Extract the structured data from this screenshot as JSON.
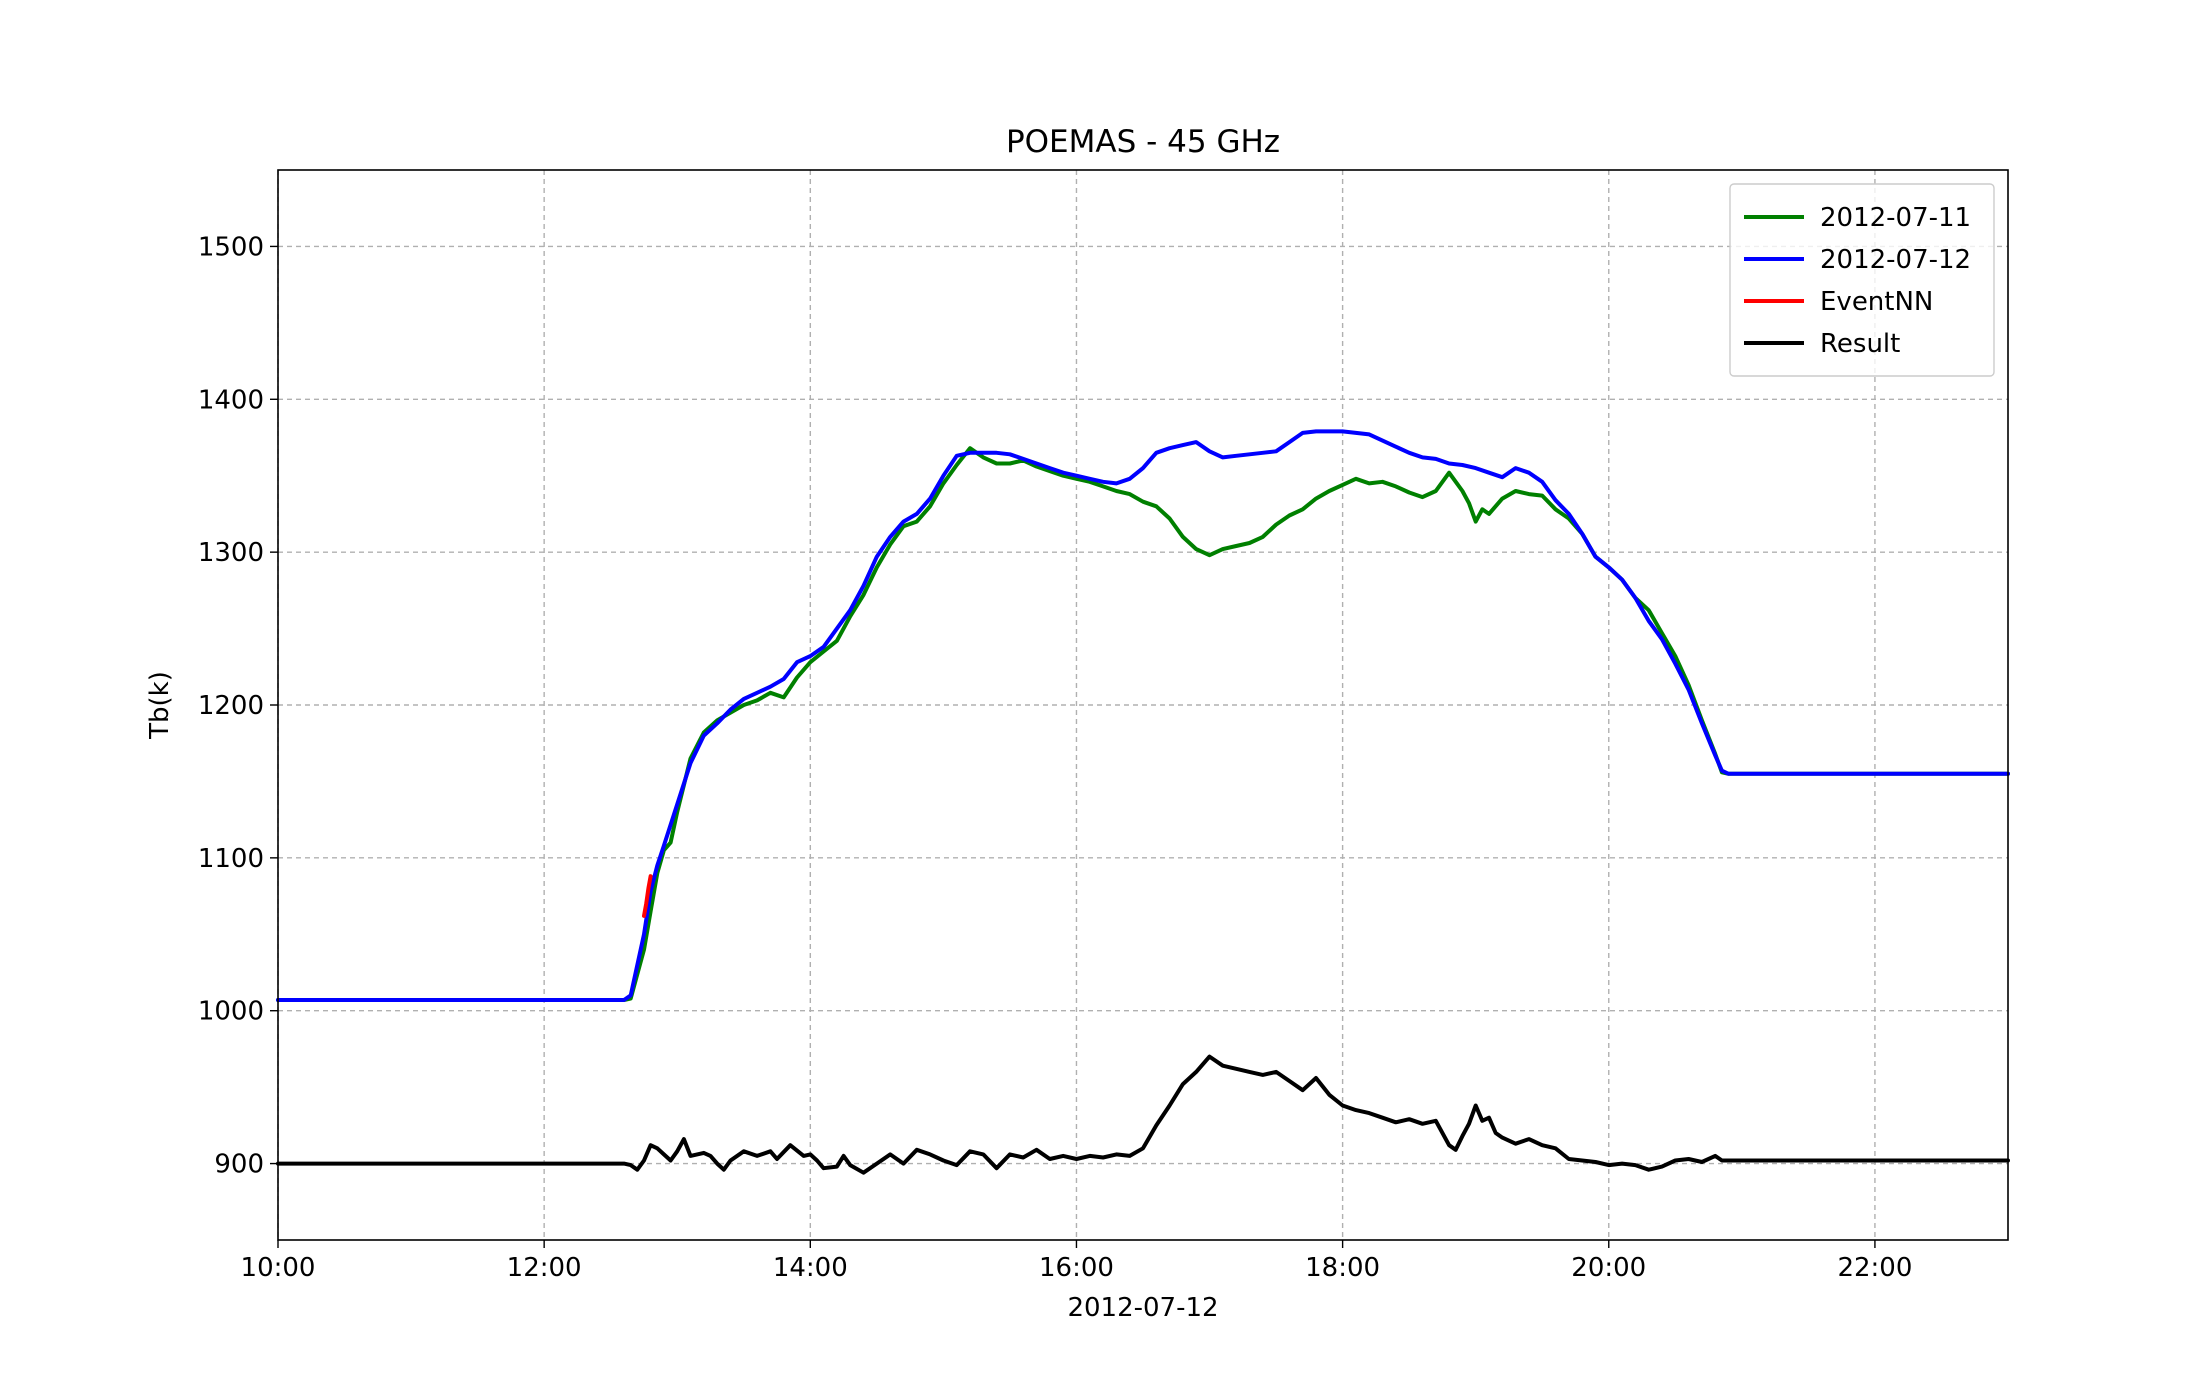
{
  "chart_data": {
    "type": "line",
    "title": "POEMAS - 45 GHz",
    "xlabel": "2012-07-12",
    "ylabel": "Tb(k)",
    "xlim": [
      "10:00",
      "23:00"
    ],
    "ylim": [
      850,
      1550
    ],
    "x_ticks": [
      "10:00",
      "12:00",
      "14:00",
      "16:00",
      "18:00",
      "20:00",
      "22:00"
    ],
    "y_ticks": [
      "900",
      "1000",
      "1100",
      "1200",
      "1300",
      "1400",
      "1500"
    ],
    "grid": true,
    "legend_position": "top-right",
    "series": [
      {
        "name": "2012-07-11",
        "color": "#008000",
        "points": [
          [
            "10:00",
            1007
          ],
          [
            "12:36",
            1007
          ],
          [
            "12:39",
            1008
          ],
          [
            "12:45",
            1040
          ],
          [
            "12:48",
            1065
          ],
          [
            "12:51",
            1090
          ],
          [
            "12:54",
            1105
          ],
          [
            "12:57",
            1110
          ],
          [
            "13:00",
            1130
          ],
          [
            "13:06",
            1165
          ],
          [
            "13:12",
            1182
          ],
          [
            "13:18",
            1190
          ],
          [
            "13:24",
            1195
          ],
          [
            "13:30",
            1200
          ],
          [
            "13:36",
            1203
          ],
          [
            "13:42",
            1208
          ],
          [
            "13:48",
            1205
          ],
          [
            "13:54",
            1218
          ],
          [
            "14:00",
            1228
          ],
          [
            "14:06",
            1235
          ],
          [
            "14:12",
            1242
          ],
          [
            "14:18",
            1258
          ],
          [
            "14:24",
            1272
          ],
          [
            "14:30",
            1290
          ],
          [
            "14:36",
            1305
          ],
          [
            "14:42",
            1317
          ],
          [
            "14:48",
            1320
          ],
          [
            "14:54",
            1330
          ],
          [
            "15:00",
            1345
          ],
          [
            "15:06",
            1357
          ],
          [
            "15:12",
            1368
          ],
          [
            "15:18",
            1362
          ],
          [
            "15:24",
            1358
          ],
          [
            "15:30",
            1358
          ],
          [
            "15:36",
            1360
          ],
          [
            "15:42",
            1356
          ],
          [
            "15:48",
            1353
          ],
          [
            "15:54",
            1350
          ],
          [
            "16:00",
            1348
          ],
          [
            "16:06",
            1346
          ],
          [
            "16:12",
            1343
          ],
          [
            "16:18",
            1340
          ],
          [
            "16:24",
            1338
          ],
          [
            "16:30",
            1333
          ],
          [
            "16:36",
            1330
          ],
          [
            "16:42",
            1322
          ],
          [
            "16:48",
            1310
          ],
          [
            "16:54",
            1302
          ],
          [
            "17:00",
            1298
          ],
          [
            "17:06",
            1302
          ],
          [
            "17:12",
            1304
          ],
          [
            "17:18",
            1306
          ],
          [
            "17:24",
            1310
          ],
          [
            "17:30",
            1318
          ],
          [
            "17:36",
            1324
          ],
          [
            "17:42",
            1328
          ],
          [
            "17:48",
            1335
          ],
          [
            "17:54",
            1340
          ],
          [
            "18:00",
            1344
          ],
          [
            "18:06",
            1348
          ],
          [
            "18:12",
            1345
          ],
          [
            "18:18",
            1346
          ],
          [
            "18:24",
            1343
          ],
          [
            "18:30",
            1339
          ],
          [
            "18:36",
            1336
          ],
          [
            "18:42",
            1340
          ],
          [
            "18:48",
            1352
          ],
          [
            "18:54",
            1340
          ],
          [
            "18:57",
            1332
          ],
          [
            "19:00",
            1320
          ],
          [
            "19:03",
            1328
          ],
          [
            "19:06",
            1325
          ],
          [
            "19:12",
            1335
          ],
          [
            "19:18",
            1340
          ],
          [
            "19:24",
            1338
          ],
          [
            "19:30",
            1337
          ],
          [
            "19:36",
            1328
          ],
          [
            "19:42",
            1322
          ],
          [
            "19:48",
            1312
          ],
          [
            "19:54",
            1297
          ],
          [
            "20:00",
            1290
          ],
          [
            "20:06",
            1282
          ],
          [
            "20:12",
            1270
          ],
          [
            "20:18",
            1262
          ],
          [
            "20:24",
            1247
          ],
          [
            "20:30",
            1232
          ],
          [
            "20:36",
            1213
          ],
          [
            "20:42",
            1190
          ],
          [
            "20:48",
            1168
          ],
          [
            "20:51",
            1156
          ],
          [
            "20:54",
            1155
          ],
          [
            "23:00",
            1155
          ]
        ]
      },
      {
        "name": "2012-07-12",
        "color": "#0000ff",
        "points": [
          [
            "10:00",
            1007
          ],
          [
            "12:36",
            1007
          ],
          [
            "12:39",
            1010
          ],
          [
            "12:45",
            1050
          ],
          [
            "12:48",
            1078
          ],
          [
            "12:51",
            1095
          ],
          [
            "12:54",
            1108
          ],
          [
            "13:00",
            1135
          ],
          [
            "13:06",
            1162
          ],
          [
            "13:12",
            1180
          ],
          [
            "13:18",
            1188
          ],
          [
            "13:24",
            1197
          ],
          [
            "13:30",
            1204
          ],
          [
            "13:36",
            1208
          ],
          [
            "13:42",
            1212
          ],
          [
            "13:48",
            1217
          ],
          [
            "13:54",
            1228
          ],
          [
            "14:00",
            1232
          ],
          [
            "14:06",
            1238
          ],
          [
            "14:12",
            1250
          ],
          [
            "14:18",
            1262
          ],
          [
            "14:24",
            1278
          ],
          [
            "14:30",
            1297
          ],
          [
            "14:36",
            1310
          ],
          [
            "14:42",
            1320
          ],
          [
            "14:48",
            1325
          ],
          [
            "14:54",
            1335
          ],
          [
            "15:00",
            1350
          ],
          [
            "15:06",
            1363
          ],
          [
            "15:12",
            1365
          ],
          [
            "15:18",
            1365
          ],
          [
            "15:24",
            1365
          ],
          [
            "15:30",
            1364
          ],
          [
            "15:36",
            1361
          ],
          [
            "15:42",
            1358
          ],
          [
            "15:48",
            1355
          ],
          [
            "15:54",
            1352
          ],
          [
            "16:00",
            1350
          ],
          [
            "16:06",
            1348
          ],
          [
            "16:12",
            1346
          ],
          [
            "16:18",
            1345
          ],
          [
            "16:24",
            1348
          ],
          [
            "16:30",
            1355
          ],
          [
            "16:36",
            1365
          ],
          [
            "16:42",
            1368
          ],
          [
            "16:48",
            1370
          ],
          [
            "16:54",
            1372
          ],
          [
            "17:00",
            1366
          ],
          [
            "17:06",
            1362
          ],
          [
            "17:12",
            1363
          ],
          [
            "17:18",
            1364
          ],
          [
            "17:24",
            1365
          ],
          [
            "17:30",
            1366
          ],
          [
            "17:36",
            1372
          ],
          [
            "17:42",
            1378
          ],
          [
            "17:48",
            1379
          ],
          [
            "17:54",
            1379
          ],
          [
            "18:00",
            1379
          ],
          [
            "18:06",
            1378
          ],
          [
            "18:12",
            1377
          ],
          [
            "18:18",
            1373
          ],
          [
            "18:24",
            1369
          ],
          [
            "18:30",
            1365
          ],
          [
            "18:36",
            1362
          ],
          [
            "18:42",
            1361
          ],
          [
            "18:48",
            1358
          ],
          [
            "18:54",
            1357
          ],
          [
            "19:00",
            1355
          ],
          [
            "19:06",
            1352
          ],
          [
            "19:12",
            1349
          ],
          [
            "19:18",
            1355
          ],
          [
            "19:24",
            1352
          ],
          [
            "19:30",
            1346
          ],
          [
            "19:36",
            1334
          ],
          [
            "19:42",
            1325
          ],
          [
            "19:48",
            1312
          ],
          [
            "19:54",
            1297
          ],
          [
            "20:00",
            1290
          ],
          [
            "20:06",
            1282
          ],
          [
            "20:12",
            1270
          ],
          [
            "20:18",
            1255
          ],
          [
            "20:24",
            1243
          ],
          [
            "20:30",
            1227
          ],
          [
            "20:36",
            1210
          ],
          [
            "20:42",
            1188
          ],
          [
            "20:48",
            1167
          ],
          [
            "20:51",
            1157
          ],
          [
            "20:54",
            1155
          ],
          [
            "23:00",
            1155
          ]
        ]
      },
      {
        "name": "EventNN",
        "color": "#ff0000",
        "points": [
          [
            "12:45",
            1062
          ],
          [
            "12:46",
            1070
          ],
          [
            "12:47",
            1080
          ],
          [
            "12:48",
            1088
          ]
        ]
      },
      {
        "name": "Result",
        "color": "#000000",
        "points": [
          [
            "10:00",
            900
          ],
          [
            "12:36",
            900
          ],
          [
            "12:39",
            899
          ],
          [
            "12:42",
            896
          ],
          [
            "12:45",
            902
          ],
          [
            "12:48",
            912
          ],
          [
            "12:51",
            910
          ],
          [
            "12:54",
            906
          ],
          [
            "12:57",
            902
          ],
          [
            "13:00",
            908
          ],
          [
            "13:03",
            916
          ],
          [
            "13:06",
            905
          ],
          [
            "13:12",
            907
          ],
          [
            "13:15",
            905
          ],
          [
            "13:18",
            900
          ],
          [
            "13:21",
            896
          ],
          [
            "13:24",
            902
          ],
          [
            "13:30",
            908
          ],
          [
            "13:36",
            905
          ],
          [
            "13:42",
            908
          ],
          [
            "13:45",
            903
          ],
          [
            "13:51",
            912
          ],
          [
            "13:57",
            905
          ],
          [
            "14:00",
            906
          ],
          [
            "14:03",
            902
          ],
          [
            "14:06",
            897
          ],
          [
            "14:12",
            898
          ],
          [
            "14:15",
            905
          ],
          [
            "14:18",
            899
          ],
          [
            "14:24",
            894
          ],
          [
            "14:30",
            900
          ],
          [
            "14:36",
            906
          ],
          [
            "14:42",
            900
          ],
          [
            "14:48",
            909
          ],
          [
            "14:54",
            906
          ],
          [
            "15:00",
            902
          ],
          [
            "15:06",
            899
          ],
          [
            "15:12",
            908
          ],
          [
            "15:18",
            906
          ],
          [
            "15:24",
            897
          ],
          [
            "15:30",
            906
          ],
          [
            "15:36",
            904
          ],
          [
            "15:42",
            909
          ],
          [
            "15:48",
            903
          ],
          [
            "15:54",
            905
          ],
          [
            "16:00",
            903
          ],
          [
            "16:06",
            905
          ],
          [
            "16:12",
            904
          ],
          [
            "16:18",
            906
          ],
          [
            "16:24",
            905
          ],
          [
            "16:30",
            910
          ],
          [
            "16:36",
            925
          ],
          [
            "16:42",
            938
          ],
          [
            "16:48",
            952
          ],
          [
            "16:54",
            960
          ],
          [
            "17:00",
            970
          ],
          [
            "17:06",
            964
          ],
          [
            "17:12",
            962
          ],
          [
            "17:18",
            960
          ],
          [
            "17:24",
            958
          ],
          [
            "17:30",
            960
          ],
          [
            "17:36",
            954
          ],
          [
            "17:42",
            948
          ],
          [
            "17:48",
            956
          ],
          [
            "17:54",
            945
          ],
          [
            "18:00",
            938
          ],
          [
            "18:06",
            935
          ],
          [
            "18:12",
            933
          ],
          [
            "18:18",
            930
          ],
          [
            "18:24",
            927
          ],
          [
            "18:30",
            929
          ],
          [
            "18:36",
            926
          ],
          [
            "18:42",
            928
          ],
          [
            "18:48",
            912
          ],
          [
            "18:51",
            909
          ],
          [
            "18:54",
            918
          ],
          [
            "18:57",
            926
          ],
          [
            "19:00",
            938
          ],
          [
            "19:03",
            928
          ],
          [
            "19:06",
            930
          ],
          [
            "19:09",
            920
          ],
          [
            "19:12",
            917
          ],
          [
            "19:18",
            913
          ],
          [
            "19:24",
            916
          ],
          [
            "19:30",
            912
          ],
          [
            "19:36",
            910
          ],
          [
            "19:42",
            903
          ],
          [
            "19:48",
            902
          ],
          [
            "19:54",
            901
          ],
          [
            "20:00",
            899
          ],
          [
            "20:06",
            900
          ],
          [
            "20:12",
            899
          ],
          [
            "20:18",
            896
          ],
          [
            "20:24",
            898
          ],
          [
            "20:30",
            902
          ],
          [
            "20:36",
            903
          ],
          [
            "20:42",
            901
          ],
          [
            "20:48",
            905
          ],
          [
            "20:51",
            902
          ],
          [
            "20:54",
            902
          ],
          [
            "23:00",
            902
          ]
        ]
      }
    ]
  }
}
